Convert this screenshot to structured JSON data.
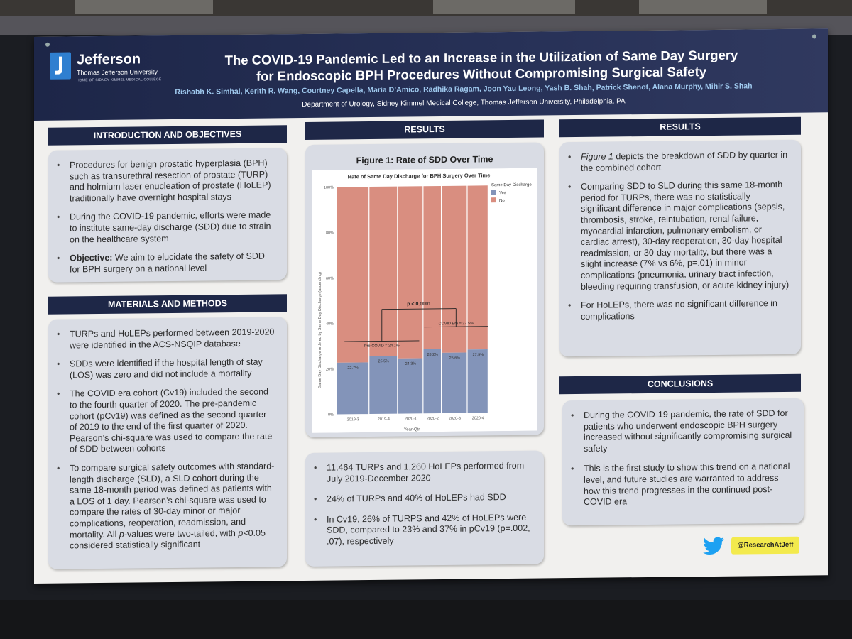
{
  "header": {
    "logo": {
      "name": "Jefferson",
      "subtitle": "Thomas Jefferson University",
      "tagline": "HOME OF SIDNEY KIMMEL MEDICAL COLLEGE"
    },
    "title_line1": "The COVID-19 Pandemic Led to an Increase in the Utilization of Same Day Surgery",
    "title_line2": "for Endoscopic BPH Procedures Without Compromising Surgical Safety",
    "authors": "Rishabh K. Simhal, Kerith R. Wang, Courtney Capella, Maria D’Amico, Radhika Ragam, Joon Yau Leong, Yash B. Shah, Patrick Shenot, Alana Murphy, Mihir S. Shah",
    "department": "Department of Urology, Sidney Kimmel Medical College, Thomas Jefferson University, Philadelphia, PA"
  },
  "intro": {
    "heading": "INTRODUCTION AND OBJECTIVES",
    "bullet1": "Procedures for benign prostatic hyperplasia (BPH) such as transurethral resection of prostate (TURP) and holmium laser enucleation of prostate (HoLEP) traditionally have overnight hospital stays",
    "bullet2": "During the COVID-19 pandemic, efforts were made to institute same-day discharge (SDD) due to strain on the healthcare system",
    "objective_label": "Objective:",
    "objective_text": " We aim to elucidate the safety of SDD for BPH surgery on a national level"
  },
  "methods": {
    "heading": "MATERIALS AND METHODS",
    "bullet1": "TURPs and HoLEPs performed between 2019-2020 were identified in the ACS-NSQIP database",
    "bullet2": "SDDs were identified if the hospital length of stay (LOS) was zero and did not include a mortality",
    "bullet3": "The COVID era cohort (Cv19) included the second to the fourth quarter of 2020. The pre-pandemic cohort (pCv19) was defined as the second quarter of 2019 to the end of the first quarter of 2020. Pearson’s chi-square was used to compare the rate of SDD between cohorts",
    "bullet4_a": "To compare surgical safety outcomes with standard-length discharge (SLD), a SLD cohort during the same 18-month period was defined as patients with a LOS of 1 day. Pearson’s chi-square was used to compare the rates of 30-day minor or major complications, reoperation, readmission, and mortality.  All ",
    "bullet4_p1": "p",
    "bullet4_b": "-values were two-tailed, with ",
    "bullet4_p2": "p",
    "bullet4_c": "<0.05 considered statistically significant"
  },
  "results_mid": {
    "heading": "RESULTS",
    "figure_title": "Figure 1: Rate of SDD Over Time",
    "bullet1": "11,464 TURPs and 1,260 HoLEPs performed from July 2019-December 2020",
    "bullet2": "24% of TURPs and 40% of HoLEPs had SDD",
    "bullet3": "In Cv19, 26% of TURPS and 42% of HoLEPs were SDD, compared to 23% and 37% in pCv19 (p=.002, .07), respectively"
  },
  "results_right": {
    "heading": "RESULTS",
    "bullet1_em": "Figure 1",
    "bullet1_rest": " depicts the breakdown of SDD by quarter in the combined cohort",
    "bullet2": "Comparing SDD to SLD during this same 18-month period for TURPs, there was no statistically significant difference in major complications (sepsis, thrombosis, stroke, reintubation, renal failure, myocardial infarction, pulmonary embolism, or cardiac arrest), 30-day reoperation, 30-day hospital readmission, or 30-day mortality, but there was a slight increase (7% vs 6%, p=.01) in minor complications (pneumonia, urinary tract infection, bleeding requiring transfusion, or acute kidney injury)",
    "bullet3": "For HoLEPs, there was no significant difference in complications"
  },
  "conclusions": {
    "heading": "CONCLUSIONS",
    "bullet1": "During the COVID-19 pandemic, the rate of SDD for patients who underwent endoscopic BPH surgery increased without significantly compromising surgical safety",
    "bullet2": "This is the first study to show this trend on a national level, and future studies are warranted to address how this trend progresses in the continued post-COVID era"
  },
  "footer": {
    "twitter_icon": "twitter-bird-icon",
    "handle": "@ResearchAtJeff"
  },
  "colors": {
    "header_bg": "#1d2648",
    "section_bg": "#1e2747",
    "panel_bg": "#d9dce4",
    "yes_color": "#8394b9",
    "no_color": "#d98e80",
    "handle_bg": "#f3ea4d"
  },
  "chart_data": {
    "type": "bar",
    "title": "Rate of Same Day Discharge for BPH Surgery Over Time",
    "xlabel": "Year-Qtr",
    "ylabel": "Same Day Discharge ordered by Same Day Discharge (ascending)",
    "categories": [
      "2019-3",
      "2019-4",
      "2020-1",
      "2020-2",
      "2020-3",
      "2020-4"
    ],
    "widths": [
      1260,
      1090,
      980,
      700,
      990,
      800
    ],
    "series": [
      {
        "name": "Yes",
        "values": [
          22.7,
          25.5,
          24.3,
          28.2,
          26.6,
          27.9
        ]
      },
      {
        "name": "No",
        "values": [
          77.3,
          74.5,
          75.7,
          71.8,
          73.4,
          72.1
        ]
      }
    ],
    "data_labels": [
      "22.7%",
      "25.5%",
      "24.3%",
      "28.2%",
      "26.6%",
      "27.9%"
    ],
    "yticks": [
      "0%",
      "20%",
      "40%",
      "60%",
      "80%",
      "100%"
    ],
    "ylim": [
      0,
      100
    ],
    "legend_title": "Same Day Discharge",
    "legend_position": "right",
    "annotations": {
      "pre_covid": {
        "label": "Pre-COVID = 24.1%",
        "value": 32
      },
      "covid": {
        "label": "COVID Era = 27.5%",
        "value": 38
      },
      "pvalue": {
        "label": "p < 0.0001",
        "value": 46
      }
    }
  }
}
